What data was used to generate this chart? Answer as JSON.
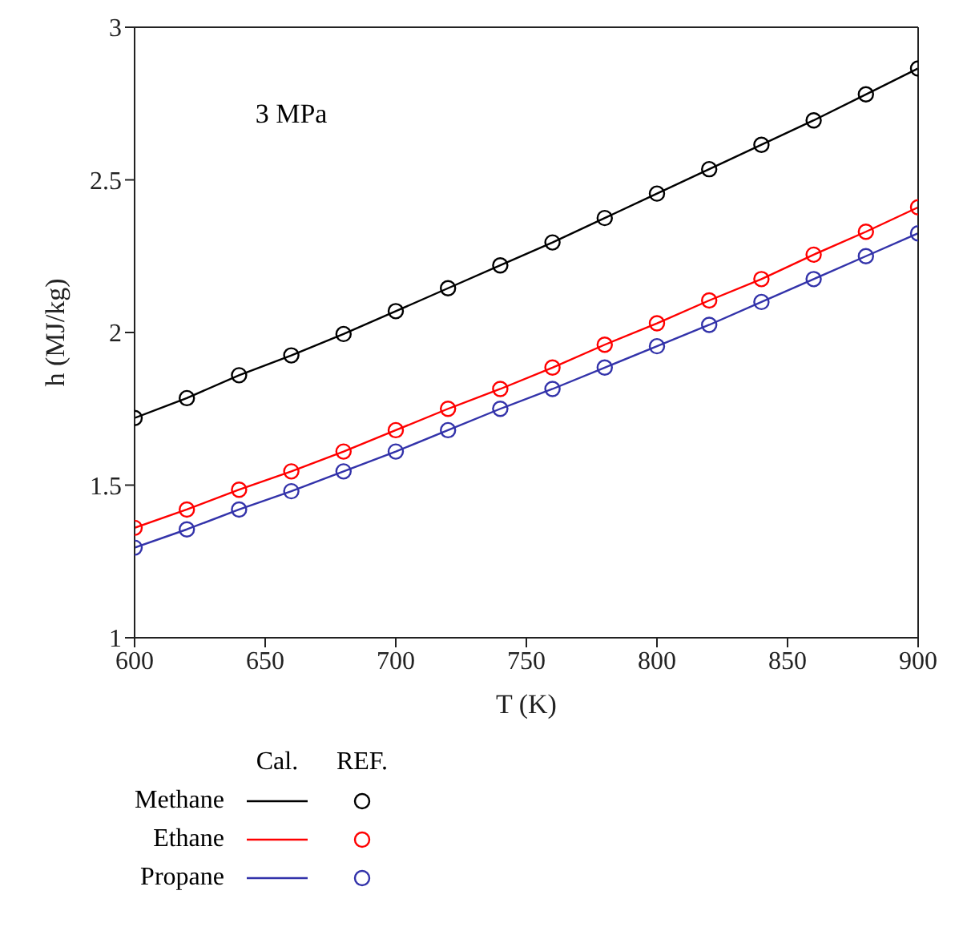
{
  "chart_data": {
    "type": "line",
    "xlabel": "T (K)",
    "ylabel": "h (MJ/kg)",
    "annotations": [
      "3 MPa",
      "Cal.",
      "REF."
    ],
    "x": [
      600,
      620,
      640,
      660,
      680,
      700,
      720,
      740,
      760,
      780,
      800,
      820,
      840,
      860,
      880,
      900
    ],
    "xlim": [
      600,
      900
    ],
    "xticks": [
      600,
      650,
      700,
      750,
      800,
      850,
      900
    ],
    "ylim": [
      1,
      3
    ],
    "yticks": [
      1,
      1.5,
      2,
      2.5,
      3
    ],
    "grid": false,
    "legend": "bottom left",
    "series": [
      {
        "name": "Methane",
        "color": "#000000",
        "values": [
          1.72,
          1.785,
          1.86,
          1.925,
          1.995,
          2.07,
          2.145,
          2.22,
          2.295,
          2.375,
          2.455,
          2.535,
          2.615,
          2.695,
          2.78,
          2.865
        ]
      },
      {
        "name": "Ethane",
        "color": "#ff0000",
        "values": [
          1.36,
          1.42,
          1.485,
          1.545,
          1.61,
          1.68,
          1.75,
          1.815,
          1.885,
          1.96,
          2.03,
          2.105,
          2.175,
          2.255,
          2.33,
          2.41
        ]
      },
      {
        "name": "Propane",
        "color": "#3333aa",
        "values": [
          1.295,
          1.355,
          1.42,
          1.48,
          1.545,
          1.61,
          1.68,
          1.75,
          1.815,
          1.885,
          1.955,
          2.025,
          2.1,
          2.175,
          2.25,
          2.325
        ]
      },
      {
        "type": "scatter",
        "marker": "circle",
        "color": "#000000",
        "values": [
          1.72,
          1.785,
          1.86,
          1.925,
          1.995,
          2.07,
          2.145,
          2.22,
          2.295,
          2.375,
          2.455,
          2.535,
          2.615,
          2.695,
          2.78,
          2.865
        ]
      },
      {
        "type": "scatter",
        "marker": "circle",
        "color": "#ff0000",
        "values": [
          1.36,
          1.42,
          1.485,
          1.545,
          1.61,
          1.68,
          1.75,
          1.815,
          1.885,
          1.96,
          2.03,
          2.105,
          2.175,
          2.255,
          2.33,
          2.41
        ]
      },
      {
        "type": "scatter",
        "marker": "circle",
        "color": "#3333aa",
        "values": [
          1.295,
          1.355,
          1.42,
          1.48,
          1.545,
          1.61,
          1.68,
          1.75,
          1.815,
          1.885,
          1.955,
          2.025,
          2.1,
          2.175,
          2.25,
          2.325
        ]
      }
    ]
  }
}
